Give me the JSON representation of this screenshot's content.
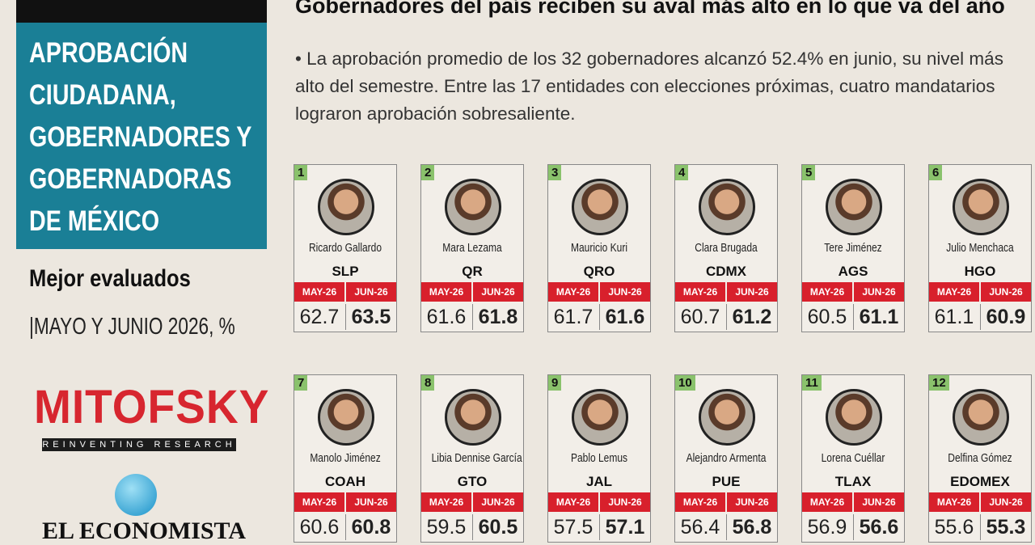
{
  "sidebar": {
    "heading": "APROBACIÓN CIUDADANA, GOBERNADORES Y GOBERNADORAS DE MÉXICO",
    "subheading": "Mejor evaluados",
    "period": "|MAYO Y JUNIO 2026, %",
    "source_logo": "MITOFSKY",
    "source_tagline": "REINVENTING RESEARCH",
    "publisher": "EL ECONOMISTA"
  },
  "header": {
    "title": "Gobernadores del país reciben su aval más alto en lo que va del año",
    "summary": "• La aprobación promedio de los 32 gobernadores alcanzó 52.4% en junio, su nivel más alto del semestre. Entre las 17 entidades con elecciones próximas, cuatro mandatarios lograron aprobación sobresaliente."
  },
  "columns": [
    "MAY-26",
    "JUN-26"
  ],
  "governors": [
    {
      "rank": 1,
      "name": "Ricardo Gallardo",
      "state": "SLP",
      "may": 62.7,
      "jun": 63.5
    },
    {
      "rank": 2,
      "name": "Mara Lezama",
      "state": "QR",
      "may": 61.6,
      "jun": 61.8
    },
    {
      "rank": 3,
      "name": "Mauricio Kuri",
      "state": "QRO",
      "may": 61.7,
      "jun": 61.6
    },
    {
      "rank": 4,
      "name": "Clara Brugada",
      "state": "CDMX",
      "may": 60.7,
      "jun": 61.2
    },
    {
      "rank": 5,
      "name": "Tere Jiménez",
      "state": "AGS",
      "may": 60.5,
      "jun": 61.1
    },
    {
      "rank": 6,
      "name": "Julio Menchaca",
      "state": "HGO",
      "may": 61.1,
      "jun": 60.9
    },
    {
      "rank": 7,
      "name": "Manolo Jiménez",
      "state": "COAH",
      "may": 60.6,
      "jun": 60.8
    },
    {
      "rank": 8,
      "name": "Libia Dennise García",
      "state": "GTO",
      "may": 59.5,
      "jun": 60.5
    },
    {
      "rank": 9,
      "name": "Pablo Lemus",
      "state": "JAL",
      "may": 57.5,
      "jun": 57.1
    },
    {
      "rank": 10,
      "name": "Alejandro Armenta",
      "state": "PUE",
      "may": 56.4,
      "jun": 56.8
    },
    {
      "rank": 11,
      "name": "Lorena Cuéllar",
      "state": "TLAX",
      "may": 56.9,
      "jun": 56.6
    },
    {
      "rank": 12,
      "name": "Delfina Gómez",
      "state": "EDOMEX",
      "may": 55.6,
      "jun": 55.3
    }
  ]
}
